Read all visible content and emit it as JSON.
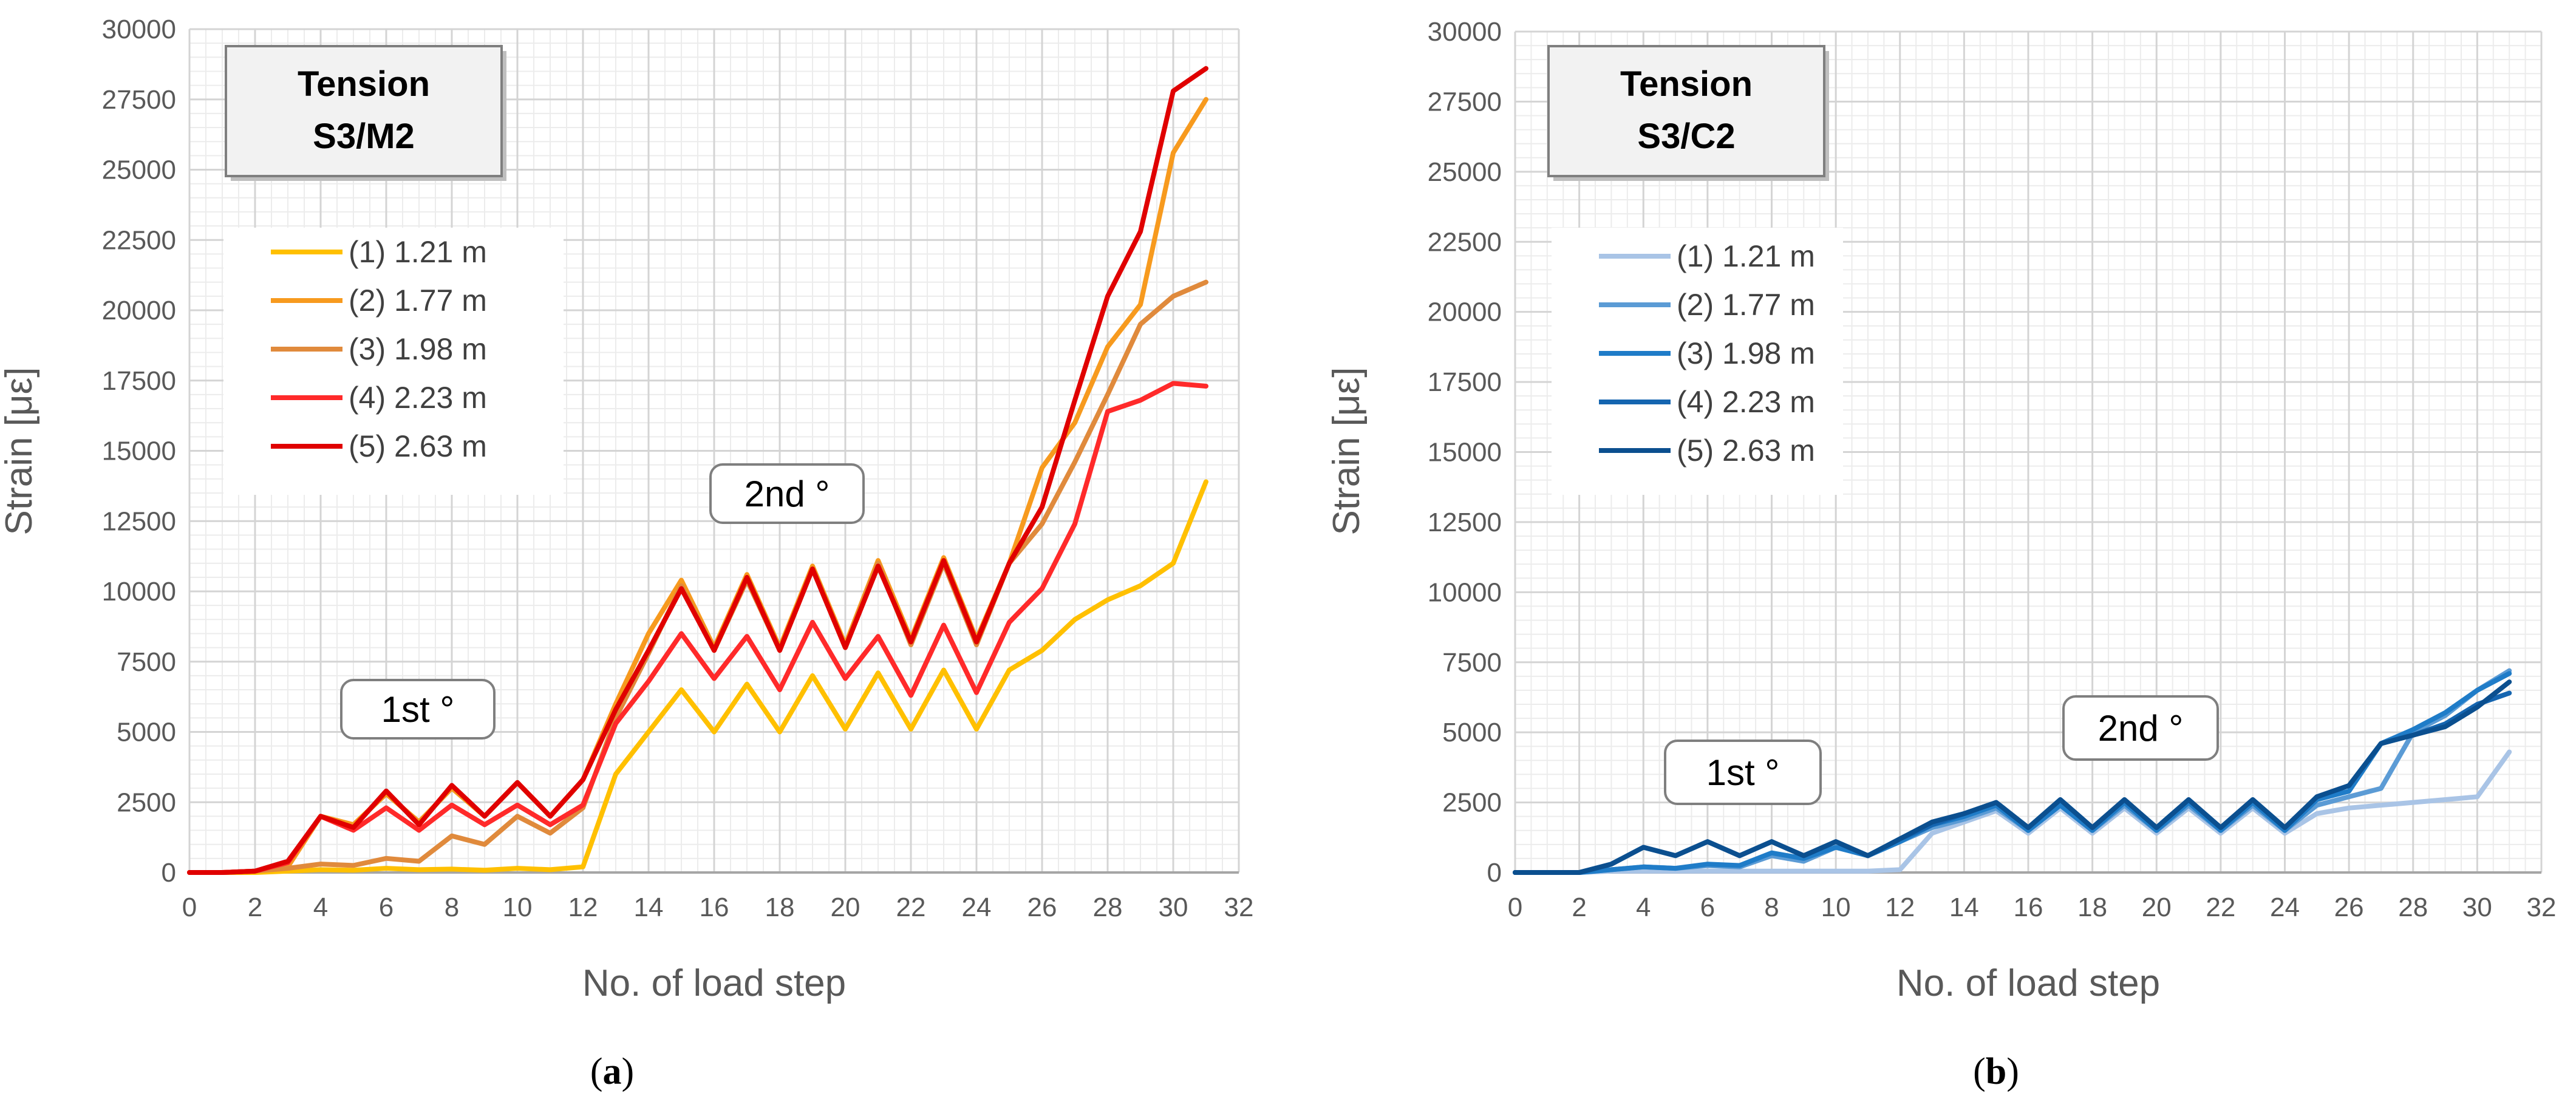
{
  "chart_data": [
    {
      "type": "line",
      "panel_label": "a",
      "title_box": {
        "line1": "Tension",
        "line2": "S3/M2"
      },
      "xlabel": "No. of load step",
      "ylabel": "Strain [με]",
      "xlim": [
        0,
        32
      ],
      "ylim": [
        0,
        30000
      ],
      "x_ticks": [
        0,
        2,
        4,
        6,
        8,
        10,
        12,
        14,
        16,
        18,
        20,
        22,
        24,
        26,
        28,
        30,
        32
      ],
      "y_ticks": [
        0,
        2500,
        5000,
        7500,
        10000,
        12500,
        15000,
        17500,
        20000,
        22500,
        25000,
        27500,
        30000
      ],
      "grid": true,
      "legend_position": "top-left",
      "annotations": [
        "1st °",
        "2nd °"
      ],
      "x": [
        0,
        1,
        2,
        3,
        4,
        5,
        6,
        7,
        8,
        9,
        10,
        11,
        12,
        13,
        14,
        15,
        16,
        17,
        18,
        19,
        20,
        21,
        22,
        23,
        24,
        25,
        26,
        27,
        28,
        29,
        30,
        31
      ],
      "series": [
        {
          "name": "(1) 1.21 m",
          "color": "#FFC000",
          "values": [
            0,
            0,
            0,
            50,
            100,
            80,
            150,
            100,
            120,
            80,
            150,
            100,
            200,
            3500,
            5000,
            6500,
            5000,
            6700,
            5000,
            7000,
            5100,
            7100,
            5100,
            7200,
            5100,
            7200,
            7900,
            9000,
            9700,
            10200,
            11000,
            13900
          ]
        },
        {
          "name": "(2) 1.77 m",
          "color": "#F79A1E",
          "values": [
            0,
            0,
            50,
            200,
            2000,
            1700,
            2800,
            1800,
            3000,
            2000,
            3200,
            2000,
            3300,
            6000,
            8500,
            10400,
            8000,
            10600,
            8000,
            10900,
            8100,
            11100,
            8300,
            11200,
            8300,
            11000,
            14400,
            16000,
            18700,
            20200,
            25600,
            27500
          ]
        },
        {
          "name": "(3) 1.98 m",
          "color": "#E08A3C",
          "values": [
            0,
            0,
            50,
            150,
            300,
            250,
            500,
            400,
            1300,
            1000,
            2000,
            1400,
            2300,
            5500,
            7800,
            10200,
            7900,
            10400,
            7900,
            10800,
            8000,
            11000,
            8100,
            11000,
            8100,
            11000,
            12400,
            14600,
            17000,
            19500,
            20500,
            21000
          ]
        },
        {
          "name": "(4) 2.23 m",
          "color": "#FF2A2A",
          "values": [
            0,
            0,
            50,
            350,
            2000,
            1500,
            2300,
            1500,
            2400,
            1700,
            2400,
            1700,
            2400,
            5300,
            6800,
            8500,
            6900,
            8400,
            6500,
            8900,
            6900,
            8400,
            6300,
            8800,
            6400,
            8900,
            10100,
            12400,
            16400,
            16800,
            17400,
            17300
          ]
        },
        {
          "name": "(5) 2.63 m",
          "color": "#E00000",
          "values": [
            0,
            0,
            50,
            400,
            2000,
            1600,
            2900,
            1700,
            3100,
            2000,
            3200,
            2000,
            3300,
            5800,
            7900,
            10100,
            7900,
            10500,
            7900,
            10800,
            8000,
            10900,
            8200,
            11100,
            8200,
            11000,
            13000,
            16800,
            20500,
            22800,
            27800,
            28600
          ]
        }
      ]
    },
    {
      "type": "line",
      "panel_label": "b",
      "title_box": {
        "line1": "Tension",
        "line2": "S3/C2"
      },
      "xlabel": "No. of load step",
      "ylabel": "Strain [με]",
      "xlim": [
        0,
        32
      ],
      "ylim": [
        0,
        30000
      ],
      "x_ticks": [
        0,
        2,
        4,
        6,
        8,
        10,
        12,
        14,
        16,
        18,
        20,
        22,
        24,
        26,
        28,
        30,
        32
      ],
      "y_ticks": [
        0,
        2500,
        5000,
        7500,
        10000,
        12500,
        15000,
        17500,
        20000,
        22500,
        25000,
        27500,
        30000
      ],
      "grid": true,
      "legend_position": "top-left",
      "annotations": [
        "1st °",
        "2nd °"
      ],
      "x": [
        0,
        1,
        2,
        3,
        4,
        5,
        6,
        7,
        8,
        9,
        10,
        11,
        12,
        13,
        14,
        15,
        16,
        17,
        18,
        19,
        20,
        21,
        22,
        23,
        24,
        25,
        26,
        27,
        28,
        29,
        30,
        31
      ],
      "series": [
        {
          "name": "(1) 1.21 m",
          "color": "#A9C4E6",
          "values": [
            0,
            0,
            0,
            50,
            50,
            50,
            50,
            50,
            50,
            50,
            50,
            50,
            100,
            1400,
            1800,
            2200,
            1400,
            2300,
            1400,
            2300,
            1400,
            2300,
            1400,
            2300,
            1400,
            2100,
            2300,
            2400,
            2500,
            2600,
            2700,
            4300
          ]
        },
        {
          "name": "(2) 1.77 m",
          "color": "#5B9BD5",
          "values": [
            0,
            0,
            0,
            100,
            200,
            150,
            250,
            200,
            600,
            400,
            900,
            600,
            1100,
            1600,
            1900,
            2300,
            1500,
            2400,
            1500,
            2400,
            1500,
            2400,
            1500,
            2400,
            1500,
            2400,
            2700,
            3000,
            5000,
            5600,
            6500,
            7200
          ]
        },
        {
          "name": "(3) 1.98 m",
          "color": "#1F7CC8",
          "values": [
            0,
            0,
            0,
            100,
            200,
            150,
            300,
            250,
            700,
            500,
            900,
            600,
            1100,
            1700,
            2000,
            2400,
            1500,
            2400,
            1500,
            2500,
            1500,
            2500,
            1500,
            2500,
            1500,
            2600,
            2900,
            4600,
            5100,
            5700,
            6500,
            7100
          ]
        },
        {
          "name": "(4) 2.23 m",
          "color": "#1565B0",
          "values": [
            0,
            0,
            0,
            300,
            900,
            600,
            1100,
            600,
            1100,
            600,
            1100,
            600,
            1200,
            1700,
            2100,
            2500,
            1600,
            2600,
            1600,
            2600,
            1600,
            2600,
            1600,
            2600,
            1600,
            2700,
            3100,
            4600,
            4900,
            5300,
            6000,
            6400
          ]
        },
        {
          "name": "(5) 2.63 m",
          "color": "#0B4F8F",
          "values": [
            0,
            0,
            0,
            300,
            900,
            600,
            1100,
            600,
            1100,
            600,
            1100,
            600,
            1200,
            1800,
            2100,
            2500,
            1600,
            2600,
            1600,
            2600,
            1600,
            2600,
            1600,
            2600,
            1600,
            2700,
            3100,
            4600,
            4900,
            5200,
            5900,
            6800
          ]
        }
      ]
    }
  ]
}
